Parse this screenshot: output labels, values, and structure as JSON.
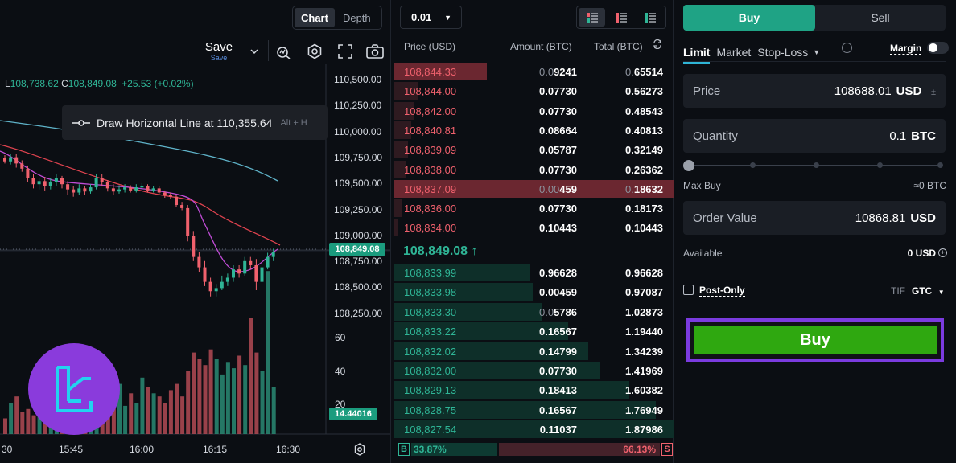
{
  "chart": {
    "tabs": [
      {
        "label": "Chart",
        "active": true
      },
      {
        "label": "Depth",
        "active": false
      }
    ],
    "save_label": "Save",
    "save_sub": "Save",
    "ohlc": {
      "l_label": "L",
      "l_value": "108,738.62",
      "c_label": "C",
      "c_value": "108,849.08",
      "change": "+25.53 (+0.02%)"
    },
    "tooltip": {
      "text": "Draw Horizontal Line at 110,355.64",
      "shortcut": "Alt + H"
    },
    "price_axis": [
      "110,500.00",
      "110,250.00",
      "110,000.00",
      "109,750.00",
      "109,500.00",
      "109,250.00",
      "109,000.00",
      "108,750.00",
      "108,500.00",
      "108,250.00"
    ],
    "current_price": "108,849.08",
    "volume_axis": [
      "60",
      "40",
      "20"
    ],
    "current_volume": "14.44016",
    "time_axis": [
      "30",
      "15:45",
      "16:00",
      "16:15",
      "16:30"
    ],
    "colors": {
      "up": "#2fb596",
      "down": "#f0616d",
      "ma_slow": "#5fb3c9",
      "ma_mid": "#e0434f",
      "ma_fast": "#c04cd6"
    }
  },
  "orderbook": {
    "precision": "0.01",
    "headers": {
      "price": "Price (USD)",
      "amount": "Amount (BTC)",
      "total": "Total (BTC)"
    },
    "asks": [
      {
        "price": "108,844.33",
        "amount_dim": "0.0",
        "amount": "9241",
        "total_dim": "0.",
        "total": "65514",
        "depth": 0.33,
        "highlight": true
      },
      {
        "price": "108,844.00",
        "amount_dim": "",
        "amount": "0.07730",
        "total_dim": "",
        "total": "0.56273",
        "depth": 0.28,
        "highlight": false
      },
      {
        "price": "108,842.00",
        "amount_dim": "",
        "amount": "0.07730",
        "total_dim": "",
        "total": "0.48543",
        "depth": 0.24,
        "highlight": false
      },
      {
        "price": "108,840.81",
        "amount_dim": "",
        "amount": "0.08664",
        "total_dim": "",
        "total": "0.40813",
        "depth": 0.2,
        "highlight": false
      },
      {
        "price": "108,839.09",
        "amount_dim": "",
        "amount": "0.05787",
        "total_dim": "",
        "total": "0.32149",
        "depth": 0.16,
        "highlight": false
      },
      {
        "price": "108,838.00",
        "amount_dim": "",
        "amount": "0.07730",
        "total_dim": "",
        "total": "0.26362",
        "depth": 0.13,
        "highlight": false
      },
      {
        "price": "108,837.09",
        "amount_dim": "0.00",
        "amount": "459",
        "total_dim": "0.",
        "total": "18632",
        "depth": 1.0,
        "highlight": true
      },
      {
        "price": "108,836.00",
        "amount_dim": "",
        "amount": "0.07730",
        "total_dim": "",
        "total": "0.18173",
        "depth": 0.09,
        "highlight": false
      },
      {
        "price": "108,834.00",
        "amount_dim": "",
        "amount": "0.10443",
        "total_dim": "",
        "total": "0.10443",
        "depth": 0.05,
        "highlight": false
      }
    ],
    "mid_price": "108,849.08 ↑",
    "bids": [
      {
        "price": "108,833.99",
        "amount_dim": "",
        "amount": "0.96628",
        "total_dim": "",
        "total": "0.96628",
        "depth": 0.51
      },
      {
        "price": "108,833.98",
        "amount_dim": "",
        "amount": "0.00459",
        "total_dim": "",
        "total": "0.97087",
        "depth": 0.52
      },
      {
        "price": "108,833.30",
        "amount_dim": "0.0",
        "amount": "5786",
        "total_dim": "",
        "total": "1.02873",
        "depth": 0.55
      },
      {
        "price": "108,833.22",
        "amount_dim": "",
        "amount": "0.16567",
        "total_dim": "",
        "total": "1.19440",
        "depth": 0.64
      },
      {
        "price": "108,832.02",
        "amount_dim": "",
        "amount": "0.14799",
        "total_dim": "",
        "total": "1.34239",
        "depth": 0.71
      },
      {
        "price": "108,832.00",
        "amount_dim": "",
        "amount": "0.07730",
        "total_dim": "",
        "total": "1.41969",
        "depth": 0.75
      },
      {
        "price": "108,829.13",
        "amount_dim": "",
        "amount": "0.18413",
        "total_dim": "",
        "total": "1.60382",
        "depth": 0.85
      },
      {
        "price": "108,828.75",
        "amount_dim": "",
        "amount": "0.16567",
        "total_dim": "",
        "total": "1.76949",
        "depth": 0.94
      },
      {
        "price": "108,827.54",
        "amount_dim": "",
        "amount": "0.11037",
        "total_dim": "",
        "total": "1.87986",
        "depth": 1.0
      }
    ],
    "ratio": {
      "b_label": "B",
      "b_value": "33.87%",
      "s_value": "66.13%",
      "s_label": "S"
    }
  },
  "trade": {
    "side_buy": "Buy",
    "side_sell": "Sell",
    "order_types": [
      "Limit",
      "Market",
      "Stop-Loss"
    ],
    "margin_label": "Margin",
    "price": {
      "label": "Price",
      "value": "108688.01",
      "unit": "USD"
    },
    "quantity": {
      "label": "Quantity",
      "value": "0.1",
      "unit": "BTC"
    },
    "max_buy_label": "Max Buy",
    "max_buy_value": "≈0 BTC",
    "order_value": {
      "label": "Order Value",
      "value": "10868.81",
      "unit": "USD"
    },
    "available_label": "Available",
    "available_value": "0 USD",
    "post_only_label": "Post-Only",
    "tif_label": "TIF",
    "tif_value": "GTC",
    "buy_button": "Buy"
  }
}
